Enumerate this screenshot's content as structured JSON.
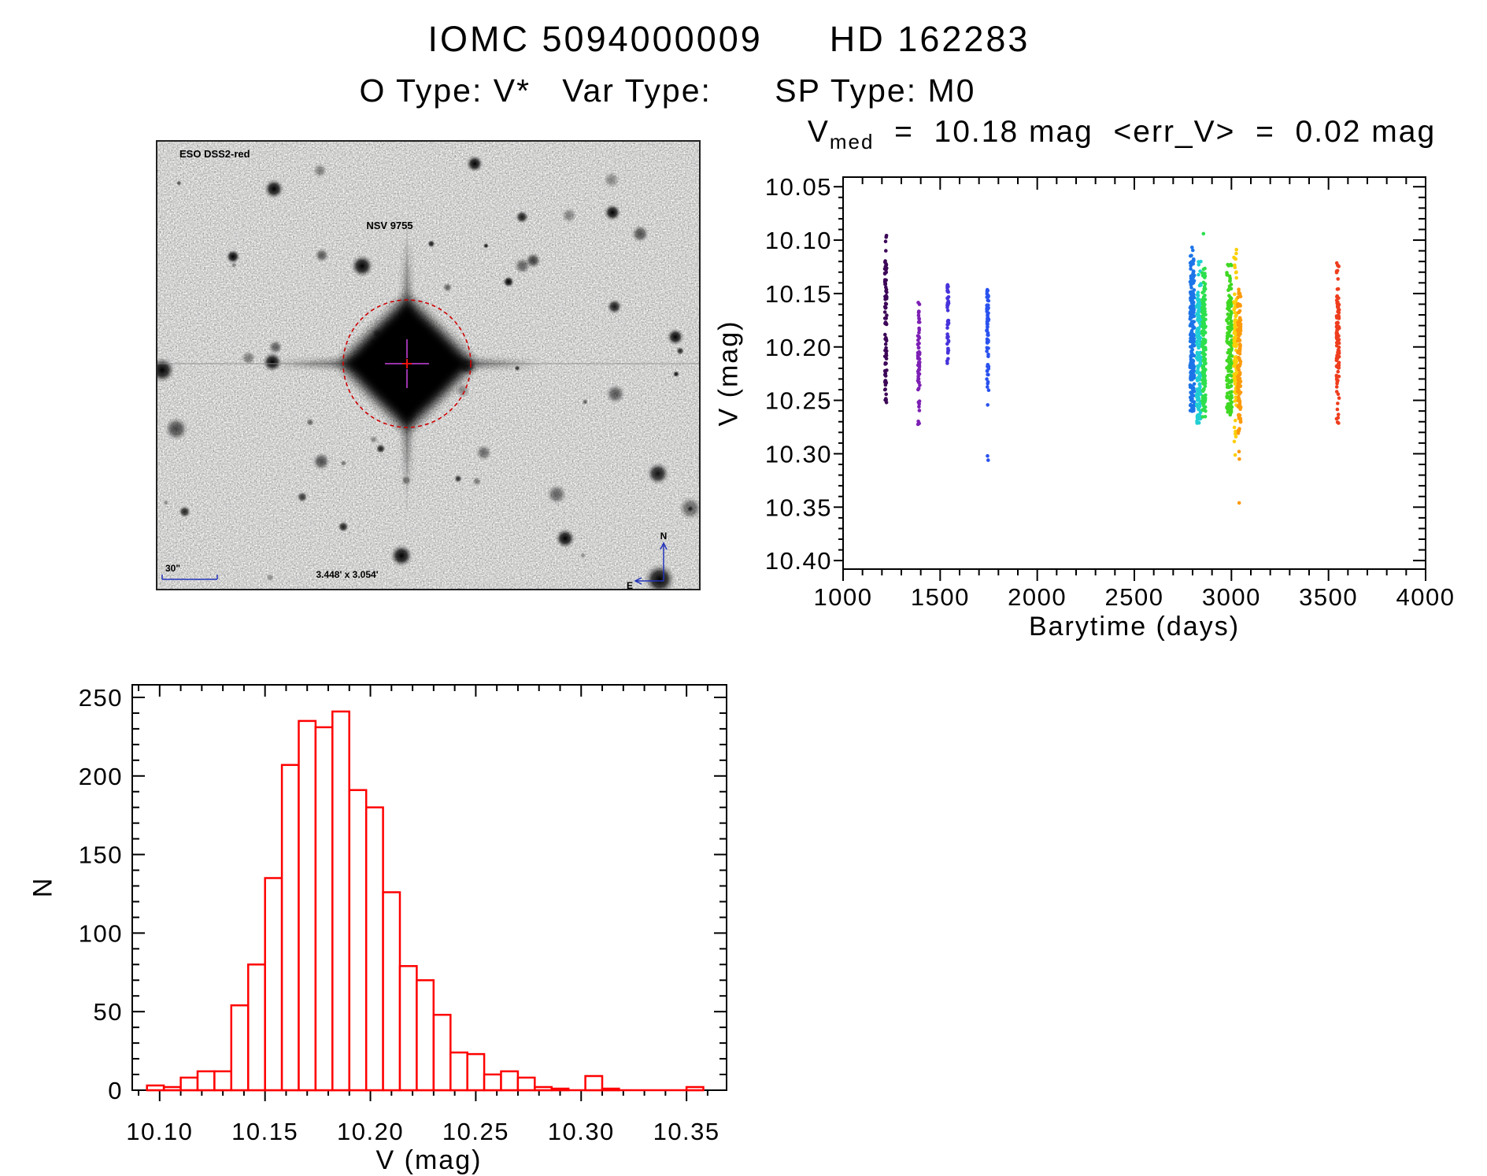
{
  "page": {
    "title_left": "IOMC 5094000009",
    "title_right": "HD 162283",
    "subtitle": "O Type: V*   Var Type:      SP Type: M0"
  },
  "finding_chart": {
    "survey_label": "ESO DSS2-red",
    "star_label": "NSV 9755",
    "scale_label": "30\"",
    "size_label": "3.448' x 3.054'",
    "compass_n": "N",
    "compass_e": "E"
  },
  "scatter": {
    "title_v": "V",
    "title_sub": "med",
    "title_rest": "  =  10.18 mag  <err_V>  =  0.02 mag",
    "xlabel": "Barytime (days)",
    "ylabel": "V (mag)"
  },
  "histogram": {
    "xlabel": "V (mag)",
    "ylabel": "N"
  },
  "colors": {
    "axis": "#000000",
    "histogram_red": "#ff0000",
    "annotation_blue": "#2233bb",
    "nsv_red": "#cc2222",
    "circle_red": "#cc0000",
    "cross_purple": "#9933aa"
  },
  "chart_data": [
    {
      "type": "scatter",
      "title": "V_med = 10.18 mag <err_V> = 0.02 mag",
      "v_median": 10.18,
      "v_err_mean": 0.02,
      "xlabel": "Barytime (days)",
      "ylabel": "V (mag)",
      "xlim": [
        1000,
        4000
      ],
      "ylim": [
        10.041,
        10.408
      ],
      "y_axis_inverted_mag": true,
      "x_major_ticks": [
        1000,
        1500,
        2000,
        2500,
        3000,
        3500,
        4000
      ],
      "x_tick_labels": [
        "1000",
        "1500",
        "2000",
        "2500",
        "3000",
        "3500",
        "4000"
      ],
      "x_minor_step": 100,
      "y_major_ticks": [
        10.05,
        10.1,
        10.15,
        10.2,
        10.25,
        10.3,
        10.35,
        10.4
      ],
      "y_tick_labels": [
        "10.05",
        "10.10",
        "10.15",
        "10.20",
        "10.25",
        "10.30",
        "10.35",
        "10.40"
      ],
      "y_minor_step": 0.01,
      "legend": "none",
      "clusters": [
        {
          "day": 1220,
          "day_spread": 5,
          "n": 85,
          "color": "#3d0758",
          "segments": [
            [
              10.095,
              10.18,
              0.62
            ],
            [
              10.185,
              10.225,
              0.28
            ],
            [
              10.225,
              10.252,
              0.1
            ]
          ],
          "outliers": []
        },
        {
          "day": 1390,
          "day_spread": 5,
          "n": 60,
          "color": "#7d1fb4",
          "segments": [
            [
              10.155,
              10.185,
              0.22
            ],
            [
              10.185,
              10.235,
              0.6
            ],
            [
              10.235,
              10.276,
              0.18
            ]
          ],
          "outliers": []
        },
        {
          "day": 1540,
          "day_spread": 4,
          "n": 45,
          "color": "#4633db",
          "segments": [
            [
              10.141,
              10.167,
              0.45
            ],
            [
              10.175,
              10.216,
              0.55
            ]
          ],
          "outliers": []
        },
        {
          "day": 1745,
          "day_spread": 5,
          "n": 70,
          "color": "#2a52ef",
          "segments": [
            [
              10.146,
              10.176,
              0.3
            ],
            [
              10.176,
              10.242,
              0.62
            ],
            [
              10.243,
              10.262,
              0.08
            ]
          ],
          "outliers": [
            [
              1744,
              10.302
            ],
            [
              1747,
              10.306
            ]
          ]
        },
        {
          "day": 2798,
          "day_spread": 11,
          "n": 210,
          "color": "#1c74e8",
          "segments": [
            [
              10.105,
              10.131,
              0.08
            ],
            [
              10.131,
              10.232,
              0.77
            ],
            [
              10.232,
              10.262,
              0.15
            ]
          ],
          "outliers": []
        },
        {
          "day": 2832,
          "day_spread": 11,
          "n": 160,
          "color": "#1fcfd2",
          "segments": [
            [
              10.118,
              10.15,
              0.1
            ],
            [
              10.15,
              10.242,
              0.72
            ],
            [
              10.242,
              10.272,
              0.18
            ]
          ],
          "outliers": []
        },
        {
          "day": 2858,
          "day_spread": 9,
          "n": 170,
          "color": "#2cdf4e",
          "segments": [
            [
              10.121,
              10.15,
              0.12
            ],
            [
              10.15,
              10.232,
              0.7
            ],
            [
              10.232,
              10.268,
              0.18
            ]
          ],
          "outliers": [
            [
              2856,
              10.094
            ]
          ]
        },
        {
          "day": 2990,
          "day_spread": 14,
          "n": 150,
          "color": "#3fd823",
          "segments": [
            [
              10.121,
              10.15,
              0.13
            ],
            [
              10.15,
              10.252,
              0.72
            ],
            [
              10.252,
              10.264,
              0.15
            ]
          ],
          "outliers": []
        },
        {
          "day": 3020,
          "day_spread": 7,
          "n": 110,
          "color": "#fbcf08",
          "segments": [
            [
              10.106,
              10.14,
              0.1
            ],
            [
              10.15,
              10.252,
              0.8
            ],
            [
              10.252,
              10.302,
              0.1
            ]
          ],
          "outliers": []
        },
        {
          "day": 3040,
          "day_spread": 8,
          "n": 120,
          "color": "#fd9a0a",
          "segments": [
            [
              10.146,
              10.172,
              0.14
            ],
            [
              10.172,
              10.252,
              0.68
            ],
            [
              10.252,
              10.282,
              0.18
            ]
          ],
          "outliers": [
            [
              3039,
              10.298
            ],
            [
              3041,
              10.305
            ],
            [
              3040,
              10.346
            ]
          ]
        },
        {
          "day": 3548,
          "day_spread": 7,
          "n": 115,
          "color": "#ee3d1d",
          "segments": [
            [
              10.117,
              10.15,
              0.12
            ],
            [
              10.15,
              10.232,
              0.74
            ],
            [
              10.232,
              10.273,
              0.14
            ]
          ],
          "outliers": []
        }
      ]
    },
    {
      "type": "bar",
      "subtype": "histogram",
      "color": "#ff0000",
      "xlabel": "V (mag)",
      "ylabel": "N",
      "xlim": [
        10.087,
        10.369
      ],
      "ylim": [
        0,
        258
      ],
      "bin_width": 0.008,
      "centers": [
        10.098,
        10.106,
        10.114,
        10.122,
        10.13,
        10.138,
        10.146,
        10.154,
        10.162,
        10.17,
        10.178,
        10.186,
        10.194,
        10.202,
        10.21,
        10.218,
        10.226,
        10.234,
        10.242,
        10.25,
        10.258,
        10.266,
        10.274,
        10.282,
        10.29,
        10.298,
        10.306,
        10.314,
        10.322,
        10.33,
        10.338,
        10.346,
        10.354
      ],
      "counts": [
        3,
        2,
        8,
        12,
        12,
        54,
        80,
        135,
        207,
        235,
        231,
        241,
        191,
        180,
        126,
        79,
        70,
        48,
        24,
        23,
        10,
        12,
        8,
        2,
        1,
        0,
        9,
        1,
        0,
        0,
        0,
        0,
        2
      ],
      "x_major_ticks": [
        10.1,
        10.15,
        10.2,
        10.25,
        10.3,
        10.35
      ],
      "x_tick_labels": [
        "10.10",
        "10.15",
        "10.20",
        "10.25",
        "10.30",
        "10.35"
      ],
      "x_minor_step": 0.01,
      "y_major_ticks": [
        0,
        50,
        100,
        150,
        200,
        250
      ],
      "y_tick_labels": [
        "0",
        "50",
        "100",
        "150",
        "200",
        "250"
      ],
      "y_minor_step": 10,
      "grid": "off"
    }
  ]
}
